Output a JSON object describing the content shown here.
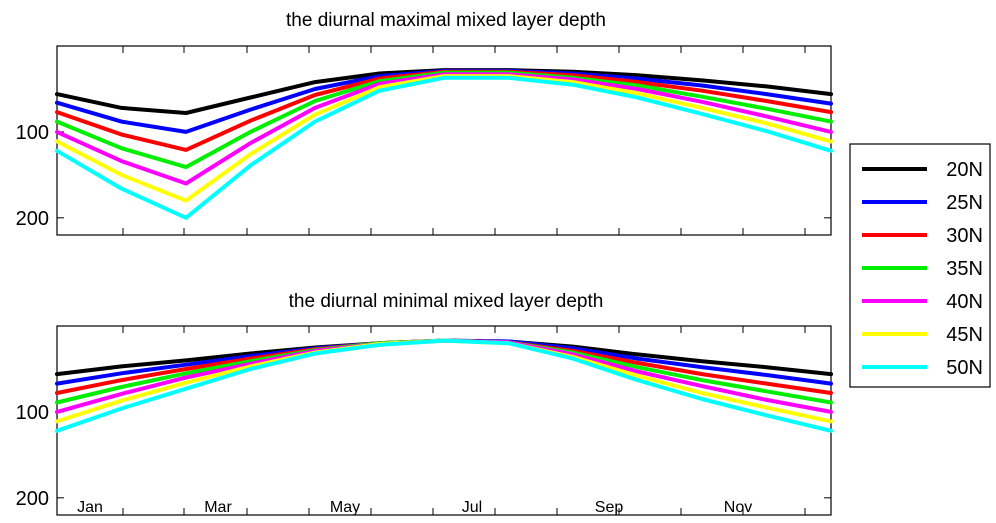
{
  "chart_data": [
    {
      "type": "line",
      "title": "the diurnal maximal mixed layer depth",
      "xlabel": "",
      "ylabel": "",
      "ylim": [
        0,
        220
      ],
      "y_reversed": true,
      "yticks": [
        "100",
        "200"
      ],
      "xticks": [
        "Jan",
        "Mar",
        "May",
        "Jul",
        "Sep",
        "Nov"
      ],
      "xticks_shown": false,
      "x": [
        1,
        2,
        3,
        4,
        5,
        6,
        7,
        8,
        9,
        10,
        11,
        12,
        13
      ],
      "series": [
        {
          "name": "20N",
          "color": "#000000",
          "values": [
            56,
            72,
            78,
            60,
            42,
            32,
            28,
            28,
            30,
            34,
            40,
            47,
            56
          ]
        },
        {
          "name": "25N",
          "color": "#0000ff",
          "values": [
            66,
            88,
            100,
            74,
            50,
            35,
            29,
            29,
            32,
            38,
            46,
            56,
            67
          ]
        },
        {
          "name": "30N",
          "color": "#ff0000",
          "values": [
            77,
            103,
            121,
            87,
            57,
            38,
            30,
            30,
            34,
            42,
            52,
            64,
            77
          ]
        },
        {
          "name": "35N",
          "color": "#00ee00",
          "values": [
            88,
            119,
            141,
            100,
            64,
            41,
            31,
            31,
            37,
            46,
            59,
            73,
            88
          ]
        },
        {
          "name": "40N",
          "color": "#ff00ff",
          "values": [
            100,
            134,
            160,
            113,
            72,
            44,
            33,
            33,
            39,
            50,
            65,
            82,
            100
          ]
        },
        {
          "name": "45N",
          "color": "#ffff00",
          "values": [
            111,
            150,
            180,
            126,
            80,
            48,
            35,
            35,
            42,
            55,
            72,
            90,
            111
          ]
        },
        {
          "name": "50N",
          "color": "#00ffff",
          "values": [
            122,
            166,
            200,
            139,
            88,
            52,
            37,
            37,
            45,
            60,
            79,
            99,
            122
          ]
        }
      ]
    },
    {
      "type": "line",
      "title": "the diurnal minimal mixed layer depth",
      "xlabel": "",
      "ylabel": "",
      "ylim": [
        0,
        220
      ],
      "y_reversed": true,
      "yticks": [
        "100",
        "200"
      ],
      "xticks": [
        "Jan",
        "Mar",
        "May",
        "Jul",
        "Sep",
        "Nov"
      ],
      "xticks_shown": true,
      "x": [
        1,
        2,
        3,
        4,
        5,
        6,
        7,
        8,
        9,
        10,
        11,
        12,
        13
      ],
      "series": [
        {
          "name": "20N",
          "color": "#000000",
          "values": [
            56,
            47,
            40,
            32,
            25,
            20,
            17,
            18,
            24,
            33,
            41,
            48,
            56
          ]
        },
        {
          "name": "25N",
          "color": "#0000ff",
          "values": [
            67,
            55,
            45,
            35,
            26,
            20,
            17,
            18,
            26,
            38,
            48,
            57,
            67
          ]
        },
        {
          "name": "30N",
          "color": "#ff0000",
          "values": [
            78,
            63,
            50,
            38,
            27,
            20,
            17,
            19,
            29,
            43,
            56,
            67,
            78
          ]
        },
        {
          "name": "35N",
          "color": "#00ee00",
          "values": [
            89,
            71,
            55,
            41,
            28,
            20,
            17,
            19,
            31,
            48,
            63,
            76,
            89
          ]
        },
        {
          "name": "40N",
          "color": "#ff00ff",
          "values": [
            100,
            79,
            60,
            44,
            29,
            21,
            17,
            19,
            33,
            53,
            70,
            86,
            100
          ]
        },
        {
          "name": "45N",
          "color": "#ffff00",
          "values": [
            111,
            87,
            66,
            47,
            31,
            21,
            17,
            20,
            36,
            58,
            78,
            95,
            111
          ]
        },
        {
          "name": "50N",
          "color": "#00ffff",
          "values": [
            122,
            96,
            73,
            50,
            32,
            22,
            17,
            20,
            38,
            63,
            85,
            104,
            122
          ]
        }
      ]
    }
  ],
  "legend": {
    "placement": "right",
    "entries": [
      "20N",
      "25N",
      "30N",
      "35N",
      "40N",
      "45N",
      "50N"
    ]
  }
}
